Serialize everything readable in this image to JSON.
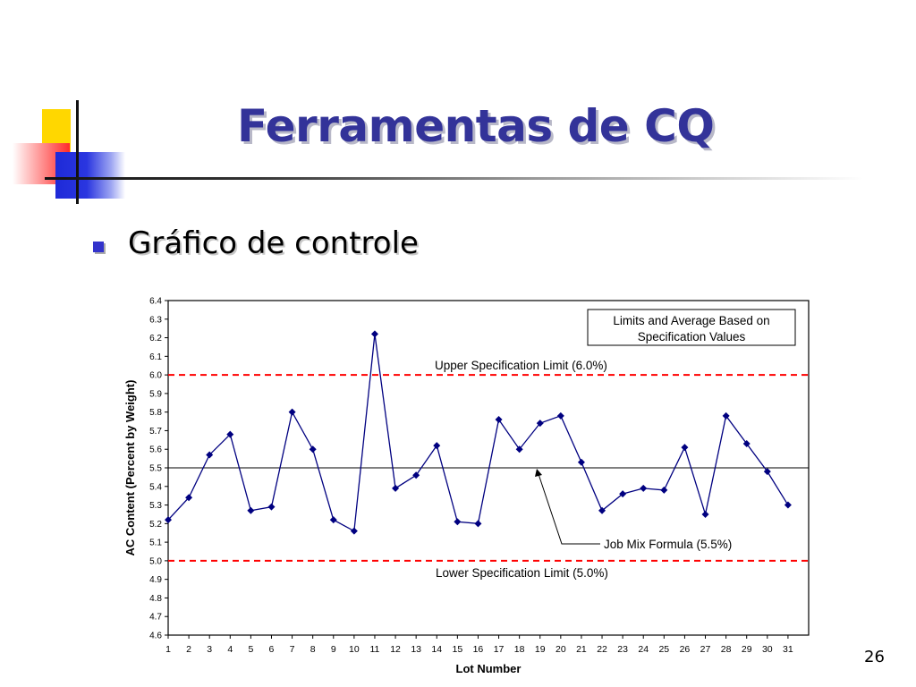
{
  "slide": {
    "title": "Ferramentas de CQ",
    "bullet": "Gráfico de controle",
    "page_number": "26"
  },
  "colors": {
    "title": "#333399",
    "bullet": "#3333cc",
    "series": "#000080",
    "spec_limits": "#ff0000",
    "deco_yellow": "#ffd700",
    "deco_red": "#ff2a2a",
    "deco_blue": "#1e2ad8"
  },
  "chart_data": {
    "type": "line",
    "xlabel": "Lot Number",
    "ylabel": "AC Content (Percent by Weight)",
    "ylim": [
      4.6,
      6.4
    ],
    "y_ticks": [
      "4.6",
      "4.7",
      "4.8",
      "4.9",
      "5.0",
      "5.1",
      "5.2",
      "5.3",
      "5.4",
      "5.5",
      "5.6",
      "5.7",
      "5.8",
      "5.9",
      "6.0",
      "6.1",
      "6.2",
      "6.3",
      "6.4"
    ],
    "categories": [
      "1",
      "2",
      "3",
      "4",
      "5",
      "6",
      "7",
      "8",
      "9",
      "10",
      "11",
      "12",
      "13",
      "14",
      "15",
      "16",
      "17",
      "18",
      "19",
      "20",
      "21",
      "22",
      "23",
      "24",
      "25",
      "26",
      "27",
      "28",
      "29",
      "30",
      "31"
    ],
    "series": [
      {
        "values": [
          5.22,
          5.34,
          5.57,
          5.68,
          5.27,
          5.29,
          5.8,
          5.6,
          5.22,
          5.16,
          6.22,
          5.39,
          5.46,
          5.62,
          5.21,
          5.2,
          5.76,
          5.6,
          5.74,
          5.78,
          5.53,
          5.27,
          5.36,
          5.39,
          5.38,
          5.61,
          5.25,
          5.78,
          5.63,
          5.48,
          5.3
        ]
      }
    ],
    "reference_lines": [
      {
        "label": "Upper Specification Limit (6.0%)",
        "value": 6.0,
        "style": "dashed"
      },
      {
        "label": "Job Mix Formula (5.5%)",
        "value": 5.5,
        "style": "solid"
      },
      {
        "label": "Lower Specification Limit (5.0%)",
        "value": 5.0,
        "style": "dashed"
      }
    ],
    "legend_box": "Limits and Average Based on Specification Values",
    "legend_placement": "top-right",
    "grid": false
  }
}
